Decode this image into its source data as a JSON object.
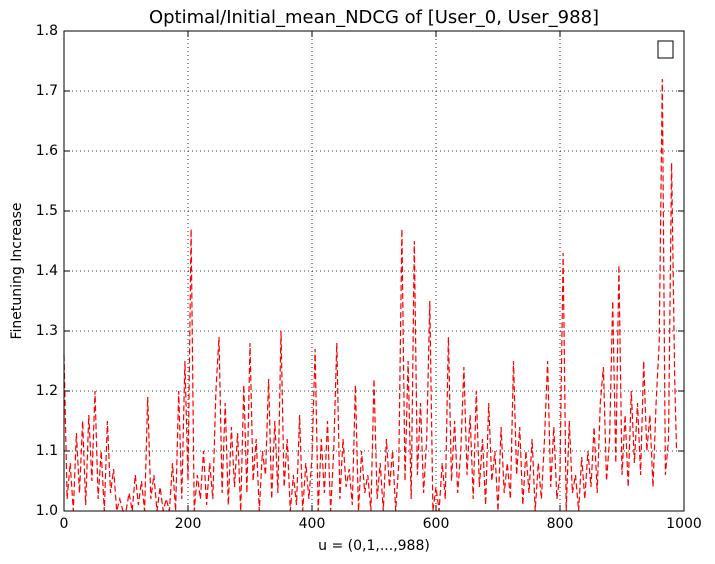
{
  "chart_data": {
    "type": "line",
    "title": "Optimal/Initial_mean_NDCG of [User_0, User_988]",
    "x_label": "u = (0,1,...,988)",
    "y_label": "Finetuning Increase",
    "xlim": [
      0,
      1000
    ],
    "xticks": [
      0,
      200,
      400,
      600,
      800,
      1000
    ],
    "ylim": [
      1.0,
      1.8
    ],
    "yticks": [
      {
        "value": 1.0,
        "label": "1.0"
      },
      1.1,
      1.2,
      1.3,
      1.4,
      1.5,
      1.6,
      1.7,
      {
        "value": 1.8,
        "label": "1.8"
      }
    ],
    "grid": true,
    "legend": "upper right",
    "x": [
      0,
      5,
      10,
      15,
      20,
      25,
      30,
      35,
      40,
      45,
      50,
      55,
      60,
      65,
      70,
      75,
      80,
      85,
      90,
      95,
      100,
      105,
      110,
      115,
      120,
      125,
      130,
      135,
      140,
      145,
      150,
      155,
      160,
      165,
      170,
      175,
      180,
      185,
      190,
      195,
      200,
      205,
      210,
      215,
      220,
      225,
      230,
      235,
      240,
      245,
      250,
      255,
      260,
      265,
      270,
      275,
      280,
      285,
      290,
      295,
      300,
      305,
      310,
      315,
      320,
      325,
      330,
      335,
      340,
      345,
      350,
      355,
      360,
      365,
      370,
      375,
      380,
      385,
      390,
      395,
      400,
      405,
      410,
      415,
      420,
      425,
      430,
      435,
      440,
      445,
      450,
      455,
      460,
      465,
      470,
      475,
      480,
      485,
      490,
      495,
      500,
      505,
      510,
      515,
      520,
      525,
      530,
      535,
      540,
      545,
      550,
      555,
      560,
      565,
      570,
      575,
      580,
      585,
      590,
      595,
      600,
      605,
      610,
      615,
      620,
      625,
      630,
      635,
      640,
      645,
      650,
      655,
      660,
      665,
      670,
      675,
      680,
      685,
      690,
      695,
      700,
      705,
      710,
      715,
      720,
      725,
      730,
      735,
      740,
      745,
      750,
      755,
      760,
      765,
      770,
      775,
      780,
      785,
      790,
      795,
      800,
      805,
      810,
      815,
      820,
      825,
      830,
      835,
      840,
      845,
      850,
      855,
      860,
      865,
      870,
      875,
      880,
      885,
      890,
      895,
      900,
      905,
      910,
      915,
      920,
      925,
      930,
      935,
      940,
      945,
      950,
      955,
      960,
      965,
      970,
      975,
      980,
      985,
      988
    ],
    "series": [
      {
        "color": "#ff0000",
        "values": [
          1.26,
          1.02,
          1.08,
          1.0,
          1.13,
          1.03,
          1.15,
          1.01,
          1.16,
          1.05,
          1.2,
          1.02,
          1.1,
          1.0,
          1.15,
          1.03,
          1.07,
          1.0,
          1.02,
          1.0,
          1.0,
          1.03,
          1.0,
          1.06,
          1.01,
          1.05,
          1.0,
          1.19,
          1.02,
          1.06,
          1.0,
          1.04,
          1.0,
          1.02,
          1.0,
          1.08,
          1.0,
          1.2,
          1.02,
          1.25,
          1.05,
          1.47,
          1.0,
          1.06,
          1.02,
          1.1,
          1.01,
          1.08,
          1.02,
          1.2,
          1.29,
          1.03,
          1.18,
          1.01,
          1.14,
          1.04,
          1.13,
          1.0,
          1.21,
          1.03,
          1.28,
          1.05,
          1.12,
          1.0,
          1.1,
          1.06,
          1.22,
          1.02,
          1.15,
          1.03,
          1.3,
          1.04,
          1.12,
          1.0,
          1.06,
          1.01,
          1.16,
          1.0,
          1.08,
          1.02,
          1.09,
          1.27,
          1.0,
          1.12,
          1.03,
          1.15,
          1.0,
          1.1,
          1.28,
          1.02,
          1.12,
          1.04,
          1.07,
          1.01,
          1.21,
          1.0,
          1.1,
          1.03,
          1.06,
          1.0,
          1.22,
          1.02,
          1.08,
          1.0,
          1.12,
          1.04,
          1.1,
          1.0,
          1.08,
          1.47,
          1.05,
          1.25,
          1.02,
          1.45,
          1.06,
          1.18,
          1.03,
          1.12,
          1.35,
          1.0,
          1.04,
          1.0,
          1.08,
          1.02,
          1.29,
          1.05,
          1.15,
          1.03,
          1.1,
          1.24,
          1.06,
          1.16,
          1.02,
          1.2,
          1.04,
          1.12,
          1.01,
          1.18,
          1.05,
          1.1,
          1.0,
          1.14,
          1.03,
          1.08,
          1.02,
          1.25,
          1.06,
          1.14,
          1.01,
          1.1,
          1.03,
          1.12,
          1.0,
          1.08,
          1.02,
          1.12,
          1.25,
          1.04,
          1.14,
          1.02,
          1.06,
          1.43,
          1.0,
          1.15,
          1.03,
          1.06,
          1.0,
          1.09,
          1.02,
          1.1,
          1.04,
          1.14,
          1.03,
          1.18,
          1.24,
          1.05,
          1.12,
          1.35,
          1.08,
          1.41,
          1.06,
          1.16,
          1.04,
          1.2,
          1.08,
          1.18,
          1.06,
          1.25,
          1.1,
          1.16,
          1.04,
          1.18,
          1.28,
          1.72,
          1.06,
          1.12,
          1.58,
          1.22,
          1.1
        ]
      }
    ]
  }
}
